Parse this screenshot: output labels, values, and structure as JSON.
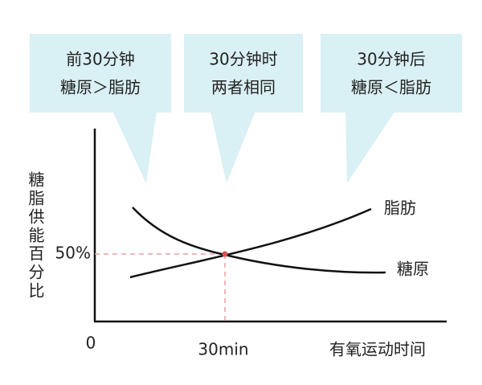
{
  "callouts": [
    {
      "lines": [
        "前30分钟",
        "糖原＞脂肪"
      ]
    },
    {
      "lines": [
        "30分钟时",
        "两者相同"
      ]
    },
    {
      "lines": [
        "30分钟后",
        "糖原＜脂肪"
      ]
    }
  ],
  "y_axis_label": "糖脂供能百分比",
  "x_axis_label": "有氧运动时间",
  "origin_label": "0",
  "x_marker_label": "30min",
  "y_marker_label": "50%",
  "curve_labels": {
    "fat": "脂肪",
    "glycogen": "糖原"
  }
}
